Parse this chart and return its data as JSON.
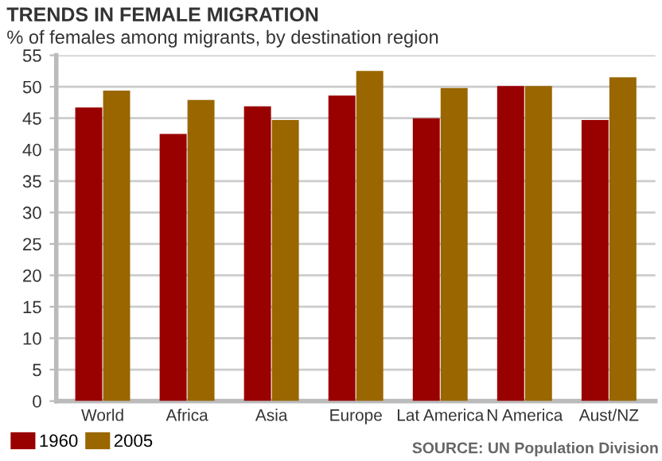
{
  "chart_data": {
    "type": "bar",
    "title": "TRENDS IN FEMALE MIGRATION",
    "subtitle": "% of females among migrants, by destination region",
    "categories": [
      "World",
      "Africa",
      "Asia",
      "Europe",
      "Lat America",
      "N America",
      "Aust/NZ"
    ],
    "series": [
      {
        "name": "1960",
        "color": "#990000",
        "values": [
          46.7,
          42.5,
          46.9,
          48.6,
          45.0,
          50.1,
          44.7
        ]
      },
      {
        "name": "2005",
        "color": "#996600",
        "values": [
          49.4,
          47.9,
          44.7,
          52.5,
          49.8,
          50.1,
          51.5
        ]
      }
    ],
    "ylim": [
      0,
      55
    ],
    "yticks": [
      0,
      5,
      10,
      15,
      20,
      25,
      30,
      35,
      40,
      45,
      50,
      55
    ],
    "grid": "y",
    "legend": "bottom left",
    "annotations": [
      "SOURCE: UN Population Division"
    ]
  }
}
